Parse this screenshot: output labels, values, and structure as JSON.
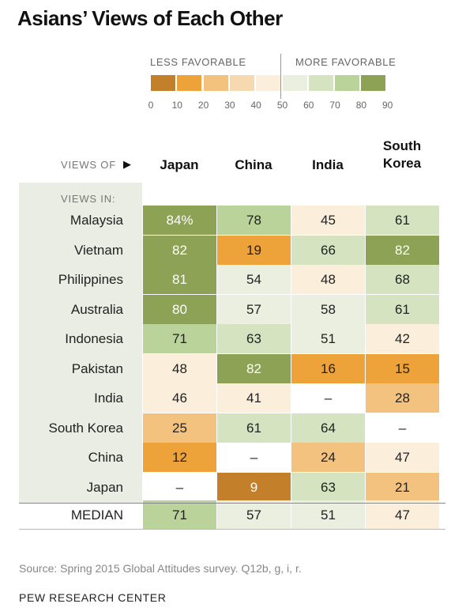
{
  "title": "Asians’ Views of Each Other",
  "legend": {
    "less_label": "LESS FAVORABLE",
    "more_label": "MORE FAVORABLE",
    "ticks": [
      "0",
      "10",
      "20",
      "30",
      "40",
      "50",
      "60",
      "70",
      "80",
      "90"
    ],
    "colors": [
      "#c47f2b",
      "#eea23a",
      "#f3c27f",
      "#f6d9b0",
      "#fbeedb",
      "#eaefe0",
      "#d5e3c1",
      "#b9d39a",
      "#8da255"
    ]
  },
  "header": {
    "views_of": "VIEWS OF",
    "views_in": "VIEWS IN:",
    "columns": [
      "Japan",
      "China",
      "India",
      "South Korea"
    ]
  },
  "chart_data": {
    "type": "table",
    "title": "Asians’ Views of Each Other",
    "columns": [
      "Japan",
      "China",
      "India",
      "South Korea"
    ],
    "rows": [
      {
        "label": "Malaysia",
        "values": [
          "84%",
          "78",
          "45",
          "61"
        ],
        "levels": [
          84,
          78,
          45,
          61
        ]
      },
      {
        "label": "Vietnam",
        "values": [
          "82",
          "19",
          "66",
          "82"
        ],
        "levels": [
          82,
          19,
          66,
          82
        ]
      },
      {
        "label": "Philippines",
        "values": [
          "81",
          "54",
          "48",
          "68"
        ],
        "levels": [
          81,
          54,
          48,
          68
        ]
      },
      {
        "label": "Australia",
        "values": [
          "80",
          "57",
          "58",
          "61"
        ],
        "levels": [
          80,
          57,
          58,
          61
        ]
      },
      {
        "label": "Indonesia",
        "values": [
          "71",
          "63",
          "51",
          "42"
        ],
        "levels": [
          71,
          63,
          51,
          42
        ]
      },
      {
        "label": "Pakistan",
        "values": [
          "48",
          "82",
          "16",
          "15"
        ],
        "levels": [
          48,
          82,
          16,
          15
        ]
      },
      {
        "label": "India",
        "values": [
          "46",
          "41",
          "–",
          "28"
        ],
        "levels": [
          46,
          41,
          null,
          28
        ]
      },
      {
        "label": "South Korea",
        "values": [
          "25",
          "61",
          "64",
          "–"
        ],
        "levels": [
          25,
          61,
          64,
          null
        ]
      },
      {
        "label": "China",
        "values": [
          "12",
          "–",
          "24",
          "47"
        ],
        "levels": [
          12,
          null,
          24,
          47
        ]
      },
      {
        "label": "Japan",
        "values": [
          "–",
          "9",
          "63",
          "21"
        ],
        "levels": [
          null,
          9,
          63,
          21
        ]
      }
    ],
    "median": {
      "label": "MEDIAN",
      "values": [
        "71",
        "57",
        "51",
        "47"
      ],
      "levels": [
        71,
        57,
        51,
        47
      ]
    }
  },
  "footer": {
    "source": "Source: Spring 2015 Global Attitudes survey. Q12b, g, i, r.",
    "org": "PEW RESEARCH CENTER"
  }
}
